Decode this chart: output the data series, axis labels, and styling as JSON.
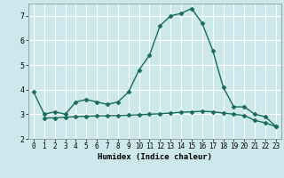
{
  "xlabel": "Humidex (Indice chaleur)",
  "bg_color": "#cce8ed",
  "grid_color": "#ffffff",
  "line_color": "#1a6b5a",
  "xlim": [
    -0.5,
    23.5
  ],
  "ylim": [
    2.0,
    7.5
  ],
  "yticks": [
    2,
    3,
    4,
    5,
    6,
    7
  ],
  "xticks": [
    0,
    1,
    2,
    3,
    4,
    5,
    6,
    7,
    8,
    9,
    10,
    11,
    12,
    13,
    14,
    15,
    16,
    17,
    18,
    19,
    20,
    21,
    22,
    23
  ],
  "series1_x": [
    0,
    1,
    2,
    3,
    4,
    5,
    6,
    7,
    8,
    9,
    10,
    11,
    12,
    13,
    14,
    15,
    16,
    17,
    18,
    19,
    20,
    21,
    22,
    23
  ],
  "series1_y": [
    3.9,
    3.0,
    3.1,
    3.0,
    3.5,
    3.6,
    3.5,
    3.4,
    3.5,
    3.9,
    4.8,
    5.4,
    6.6,
    7.0,
    7.1,
    7.3,
    6.7,
    5.6,
    4.1,
    3.3,
    3.3,
    3.0,
    2.9,
    2.5
  ],
  "series2_x": [
    1,
    2,
    3,
    4,
    5,
    6,
    7,
    8,
    9,
    10,
    11,
    12,
    13,
    14,
    15,
    16,
    17,
    18,
    19,
    20,
    21,
    22,
    23
  ],
  "series2_y": [
    2.85,
    2.85,
    2.88,
    2.9,
    2.92,
    2.93,
    2.94,
    2.95,
    2.96,
    2.98,
    3.0,
    3.02,
    3.05,
    3.08,
    3.1,
    3.12,
    3.1,
    3.05,
    3.0,
    2.95,
    2.75,
    2.65,
    2.5
  ],
  "marker": "D",
  "marker_size": 2.5,
  "linewidth": 1.0,
  "tick_fontsize": 5.5,
  "xlabel_fontsize": 6.5
}
